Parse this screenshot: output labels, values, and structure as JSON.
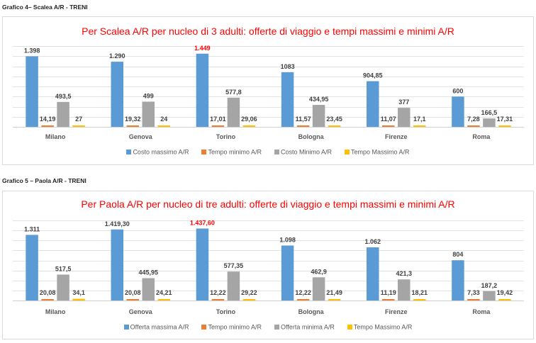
{
  "captions": [
    "Grafico 4– Scalea A/R - TRENI",
    "Grafico 5 – Paola A/R - TRENI"
  ],
  "series_colors": [
    "#5b9bd5",
    "#ed7d31",
    "#a5a5a5",
    "#ffc000"
  ],
  "highlight_color": "#ff0000",
  "chart_data": [
    {
      "type": "bar",
      "title": "Per Scalea A/R per nucleo di 3 adulti: offerte di viaggio e tempi massimi e minimi A/R",
      "xlabel": "",
      "ylabel": "",
      "ylim": [
        0,
        1600
      ],
      "grid": true,
      "legend_position": "bottom",
      "categories": [
        "Milano",
        "Genova",
        "Torino",
        "Bologna",
        "Firenze",
        "Roma"
      ],
      "series": [
        {
          "name": "Costo massimo A/R",
          "values": [
            1398,
            1290,
            1449,
            1083,
            904.85,
            600
          ],
          "labels": [
            "1.398",
            "1.290",
            "1.449",
            "1083",
            "904,85",
            "600"
          ],
          "highlight_index": 2
        },
        {
          "name": "Tempo minimo A/R",
          "values": [
            14.19,
            19.32,
            17.01,
            11.57,
            11.07,
            7.28
          ],
          "labels": [
            "14,19",
            "19,32",
            "17,01",
            "11,57",
            "11,07",
            "7,28"
          ]
        },
        {
          "name": "Costo Minimo A/R",
          "values": [
            493.5,
            499,
            577.8,
            434.95,
            377,
            166.5
          ],
          "labels": [
            "493,5",
            "499",
            "577,8",
            "434,95",
            "377",
            "166,5"
          ]
        },
        {
          "name": "Tempo Massimo A/R",
          "values": [
            27,
            24,
            29.06,
            23.45,
            17.1,
            17.31
          ],
          "labels": [
            "27",
            "24",
            "29,06",
            "23,45",
            "17,1",
            "17,31"
          ]
        }
      ]
    },
    {
      "type": "bar",
      "title": "Per Paola A/R per nucleo di tre adulti: offerte di viaggio e tempi massimi e minimi A/R",
      "xlabel": "",
      "ylabel": "",
      "ylim": [
        0,
        1600
      ],
      "grid": true,
      "legend_position": "bottom",
      "categories": [
        "Milano",
        "Genova",
        "Torino",
        "Bologna",
        "Firenze",
        "Roma"
      ],
      "series": [
        {
          "name": "Offerta massima A/R",
          "values": [
            1311,
            1419.3,
            1437.6,
            1098,
            1062,
            804
          ],
          "labels": [
            "1.311",
            "1.419,30",
            "1.437,60",
            "1.098",
            "1.062",
            "804"
          ],
          "highlight_index": 2
        },
        {
          "name": "Tempo minimo A/R",
          "values": [
            20.08,
            20.08,
            12.22,
            12.22,
            11.19,
            7.33
          ],
          "labels": [
            "20,08",
            "20,08",
            "12,22",
            "12,22",
            "11,19",
            "7,33"
          ]
        },
        {
          "name": "Offerta minima A/R",
          "values": [
            517.5,
            445.95,
            577.35,
            462.9,
            421.3,
            187.2
          ],
          "labels": [
            "517,5",
            "445,95",
            "577,35",
            "462,9",
            "421,3",
            "187,2"
          ]
        },
        {
          "name": "Tempo Massimo A/R",
          "values": [
            34.1,
            24.21,
            29.22,
            21.49,
            18.21,
            19.42
          ],
          "labels": [
            "34,1",
            "24,21",
            "29,22",
            "21,49",
            "18,21",
            "19,42"
          ]
        }
      ]
    }
  ]
}
